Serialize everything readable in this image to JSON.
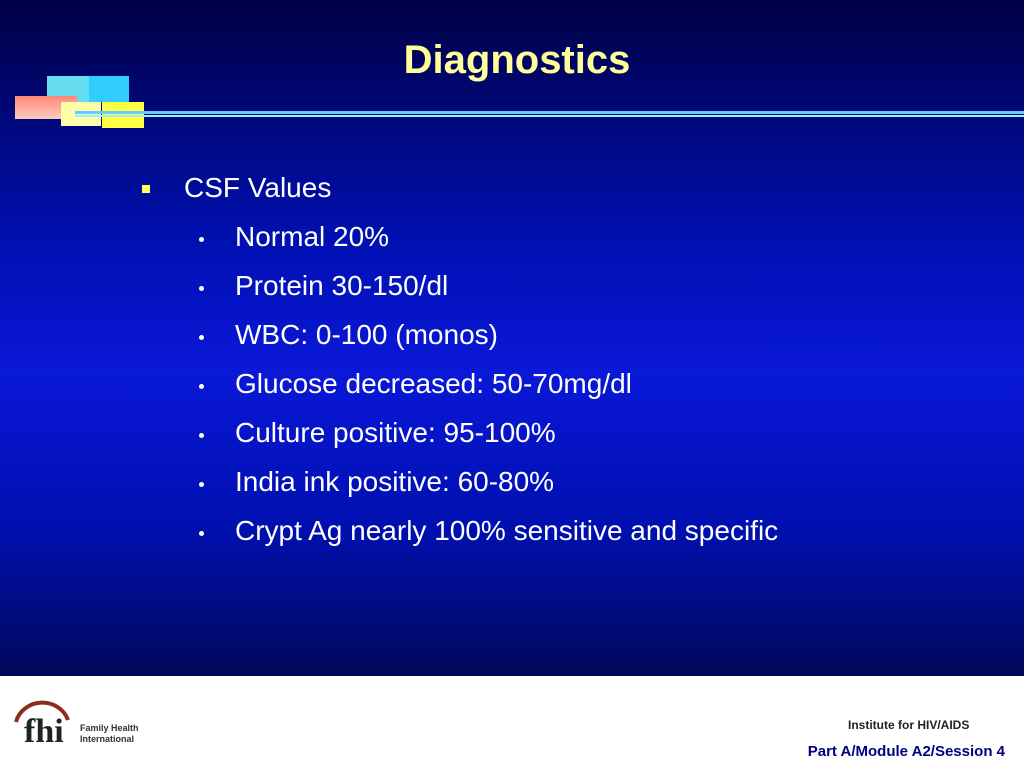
{
  "slide": {
    "title": "Diagnostics",
    "bullets": [
      {
        "text": "CSF Values",
        "items": [
          "Normal 20%",
          "Protein 30-150/dl",
          "WBC: 0-100 (monos)",
          "Glucose decreased: 50-70mg/dl",
          "Culture positive: 95-100%",
          "India ink positive: 60-80%",
          "Crypt Ag nearly 100% sensitive and specific"
        ]
      }
    ]
  },
  "footer": {
    "logo": {
      "mark": "fhi",
      "name_line1": "Family Health",
      "name_line2": "International"
    },
    "institute": "Institute for HIV/AIDS",
    "session": "Part A/Module A2/Session 4"
  }
}
